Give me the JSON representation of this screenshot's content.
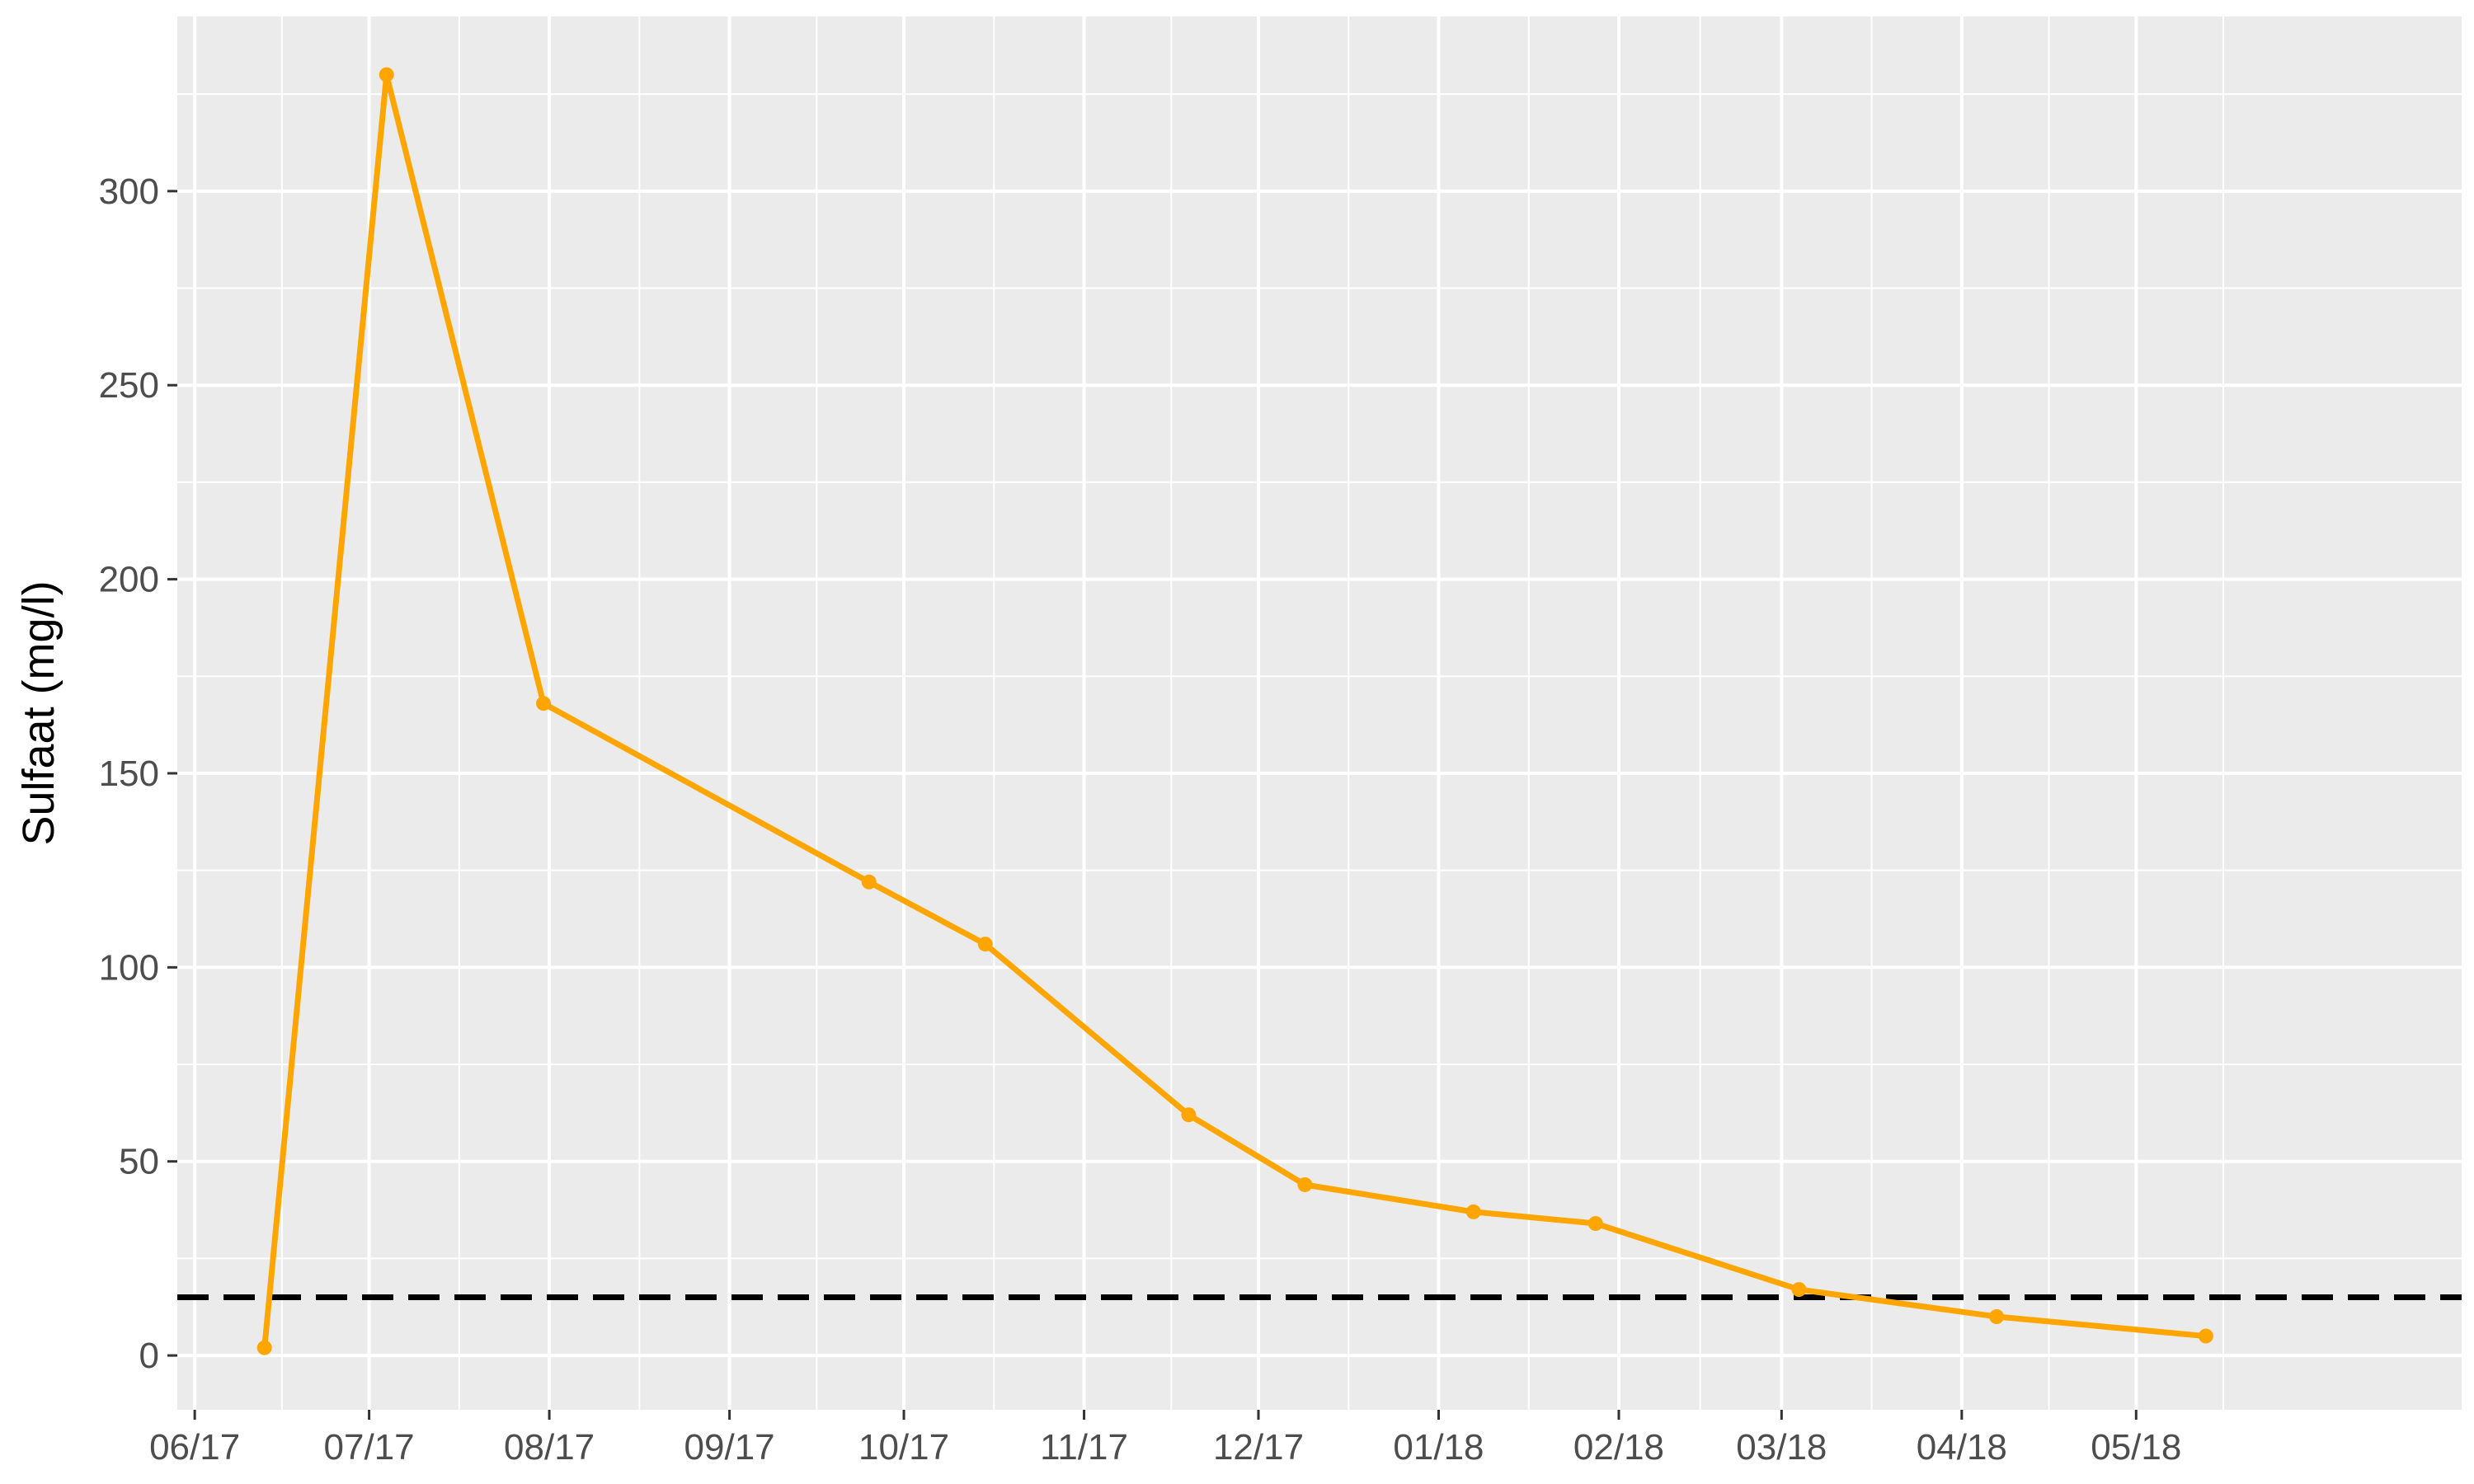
{
  "chart_data": {
    "type": "line",
    "title": "",
    "xlabel": "",
    "ylabel": "Sulfaat (mg/l)",
    "x_axis": {
      "type": "date",
      "range": [
        "2017-05-29",
        "2018-06-26"
      ],
      "ticks": [
        {
          "date": "2017-06-01",
          "label": "06/17"
        },
        {
          "date": "2017-07-01",
          "label": "07/17"
        },
        {
          "date": "2017-08-01",
          "label": "08/17"
        },
        {
          "date": "2017-09-01",
          "label": "09/17"
        },
        {
          "date": "2017-10-01",
          "label": "10/17"
        },
        {
          "date": "2017-11-01",
          "label": "11/17"
        },
        {
          "date": "2017-12-01",
          "label": "12/17"
        },
        {
          "date": "2018-01-01",
          "label": "01/18"
        },
        {
          "date": "2018-02-01",
          "label": "02/18"
        },
        {
          "date": "2018-03-01",
          "label": "03/18"
        },
        {
          "date": "2018-04-01",
          "label": "04/18"
        },
        {
          "date": "2018-05-01",
          "label": "05/18"
        }
      ]
    },
    "y_axis": {
      "range": [
        -14,
        345
      ],
      "ticks": [
        0,
        50,
        100,
        150,
        200,
        250,
        300
      ]
    },
    "grid": true,
    "series": [
      {
        "color": "#FFA500",
        "points": [
          {
            "x": "2017-06-13",
            "y": 2
          },
          {
            "x": "2017-07-04",
            "y": 330
          },
          {
            "x": "2017-07-31",
            "y": 168
          },
          {
            "x": "2017-09-25",
            "y": 122
          },
          {
            "x": "2017-10-15",
            "y": 106
          },
          {
            "x": "2017-11-19",
            "y": 62
          },
          {
            "x": "2017-12-09",
            "y": 44
          },
          {
            "x": "2018-01-07",
            "y": 37
          },
          {
            "x": "2018-01-28",
            "y": 34
          },
          {
            "x": "2018-03-04",
            "y": 17
          },
          {
            "x": "2018-04-07",
            "y": 10
          },
          {
            "x": "2018-05-13",
            "y": 5
          }
        ]
      }
    ],
    "reference_line": {
      "y": 15,
      "style": "dashed",
      "color": "#000000"
    }
  }
}
